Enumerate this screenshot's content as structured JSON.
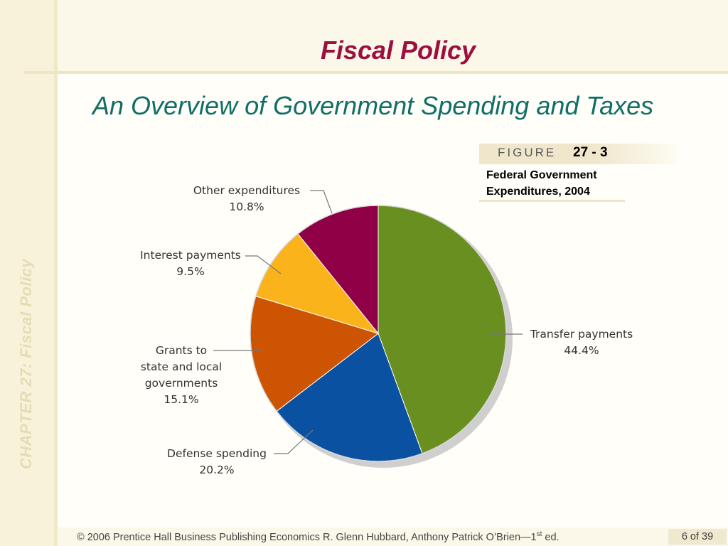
{
  "slide": {
    "title": "Fiscal Policy",
    "subtitle": "An Overview of Government Spending and Taxes",
    "side_text": "CHAPTER 27:  Fiscal Policy",
    "figure_word": "FIGURE",
    "figure_number": "27 - 3",
    "figure_caption_line1": "Federal Government",
    "figure_caption_line2": "Expenditures, 2004",
    "footer_main": "© 2006 Prentice Hall Business Publishing   Economics  R. Glenn Hubbard, Anthony Patrick O’Brien—1",
    "footer_sup": "st",
    "footer_end": " ed.",
    "page": "6 of 39"
  },
  "chart_data": {
    "type": "pie",
    "title": "Federal Government Expenditures, 2004",
    "slices": [
      {
        "label_lines": [
          "Transfer payments"
        ],
        "value": 44.4,
        "value_label": "44.4%",
        "color": "#6a8f21"
      },
      {
        "label_lines": [
          "Defense spending"
        ],
        "value": 20.2,
        "value_label": "20.2%",
        "color": "#0a52a1"
      },
      {
        "label_lines": [
          "Grants to",
          "state and local",
          "governments"
        ],
        "value": 15.1,
        "value_label": "15.1%",
        "color": "#cd5403"
      },
      {
        "label_lines": [
          "Interest payments"
        ],
        "value": 9.5,
        "value_label": "9.5%",
        "color": "#fbb31c"
      },
      {
        "label_lines": [
          "Other expenditures"
        ],
        "value": 10.8,
        "value_label": "10.8%",
        "color": "#8f0047"
      }
    ]
  }
}
